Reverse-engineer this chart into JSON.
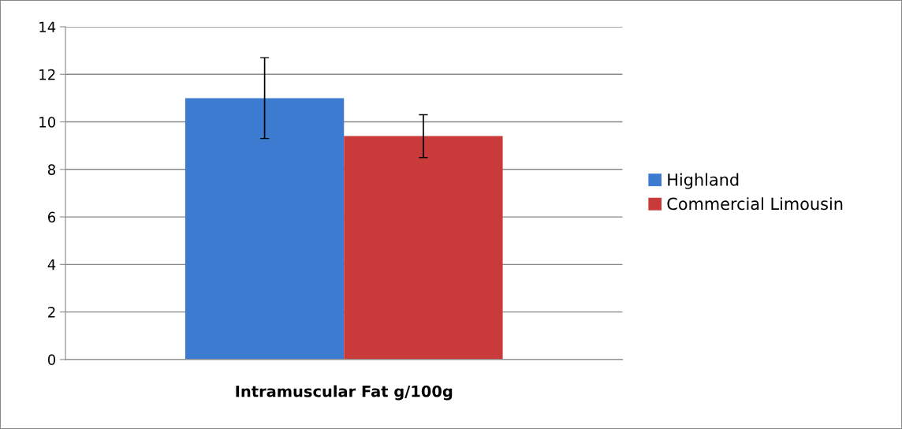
{
  "chart_data": {
    "type": "bar",
    "categories": [
      null
    ],
    "xlabel": "Intramuscular Fat g/100g",
    "series": [
      {
        "name": "Highland",
        "color": "#3c7bcf",
        "values": [
          11.0
        ],
        "errors": [
          1.7
        ]
      },
      {
        "name": "Commercial Limousin",
        "color": "#c93b3a",
        "values": [
          9.4
        ],
        "errors": [
          0.9
        ]
      }
    ],
    "ylim": [
      0,
      14
    ],
    "yticks": [
      0,
      2,
      4,
      6,
      8,
      10,
      12,
      14
    ],
    "grid": "y",
    "legend": "right"
  }
}
